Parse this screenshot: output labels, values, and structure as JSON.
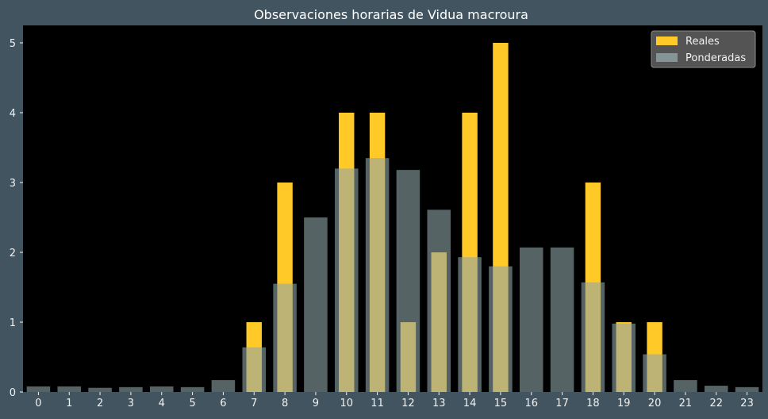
{
  "chart_data": {
    "type": "bar",
    "title": "Observaciones horarias de Vidua macroura",
    "xlabel": "",
    "ylabel": "",
    "categories": [
      "0",
      "1",
      "2",
      "3",
      "4",
      "5",
      "6",
      "7",
      "8",
      "9",
      "10",
      "11",
      "12",
      "13",
      "14",
      "15",
      "16",
      "17",
      "18",
      "19",
      "20",
      "21",
      "22",
      "23"
    ],
    "series": [
      {
        "name": "Reales",
        "color": "#ffc928",
        "values": [
          0,
          0,
          0,
          0,
          0,
          0,
          0,
          1,
          3,
          0,
          4,
          4,
          1,
          2,
          4,
          5,
          0,
          0,
          3,
          1,
          1,
          0,
          0,
          0
        ]
      },
      {
        "name": "Ponderadas",
        "color": "#8fa5a8",
        "values": [
          0.08,
          0.08,
          0.06,
          0.07,
          0.08,
          0.07,
          0.17,
          0.64,
          1.55,
          2.5,
          3.2,
          3.35,
          3.18,
          2.61,
          1.93,
          1.8,
          2.07,
          2.07,
          1.57,
          0.98,
          0.54,
          0.17,
          0.09,
          0.07
        ]
      }
    ],
    "ylim": [
      0,
      5.25
    ],
    "yticks": [
      0,
      1,
      2,
      3,
      4,
      5
    ],
    "grid": false,
    "legend_position": "top-right",
    "plot_background": "#000000",
    "figure_background": "#41545f"
  }
}
